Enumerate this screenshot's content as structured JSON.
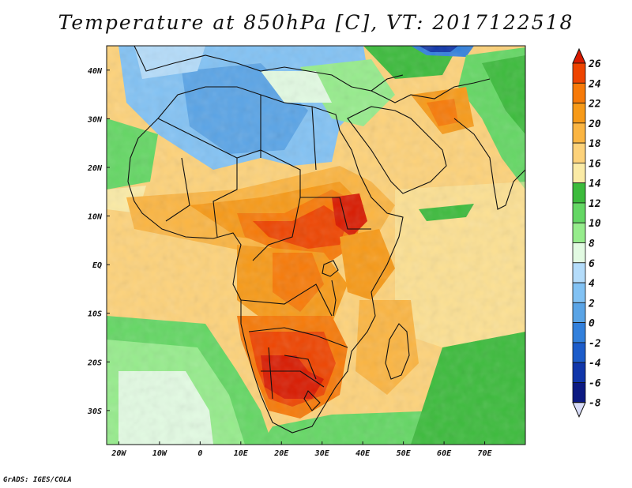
{
  "title": "Temperature at 850hPa [C], VT: 2017122518",
  "credit": "GrADS: IGES/COLA",
  "map": {
    "lon_range": [
      -23,
      80
    ],
    "lat_range": [
      -37,
      45
    ],
    "x_ticks": [
      {
        "lon": -20,
        "label": "20W"
      },
      {
        "lon": -10,
        "label": "10W"
      },
      {
        "lon": 0,
        "label": "0"
      },
      {
        "lon": 10,
        "label": "10E"
      },
      {
        "lon": 20,
        "label": "20E"
      },
      {
        "lon": 30,
        "label": "30E"
      },
      {
        "lon": 40,
        "label": "40E"
      },
      {
        "lon": 50,
        "label": "50E"
      },
      {
        "lon": 60,
        "label": "60E"
      },
      {
        "lon": 70,
        "label": "70E"
      }
    ],
    "y_ticks": [
      {
        "lat": 40,
        "label": "40N"
      },
      {
        "lat": 30,
        "label": "30N"
      },
      {
        "lat": 20,
        "label": "20N"
      },
      {
        "lat": 10,
        "label": "10N"
      },
      {
        "lat": 0,
        "label": "EQ"
      },
      {
        "lat": -10,
        "label": "10S"
      },
      {
        "lat": -20,
        "label": "20S"
      },
      {
        "lat": -30,
        "label": "30S"
      }
    ]
  },
  "colorbar": {
    "levels": [
      26,
      24,
      22,
      20,
      18,
      16,
      14,
      12,
      10,
      8,
      6,
      4,
      2,
      0,
      -2,
      -4,
      -6,
      -8
    ],
    "colors": [
      "#d91a00",
      "#ee4400",
      "#f77a08",
      "#f79a18",
      "#fbb542",
      "#fdd27a",
      "#fbeba6",
      "#3cbb3c",
      "#64d764",
      "#96ec8c",
      "#e2fae2",
      "#b4dcfa",
      "#82c2f4",
      "#5aa4e6",
      "#3280dc",
      "#1c5cca",
      "#1036aa",
      "#0c1a82",
      "#d8dcf8"
    ]
  }
}
